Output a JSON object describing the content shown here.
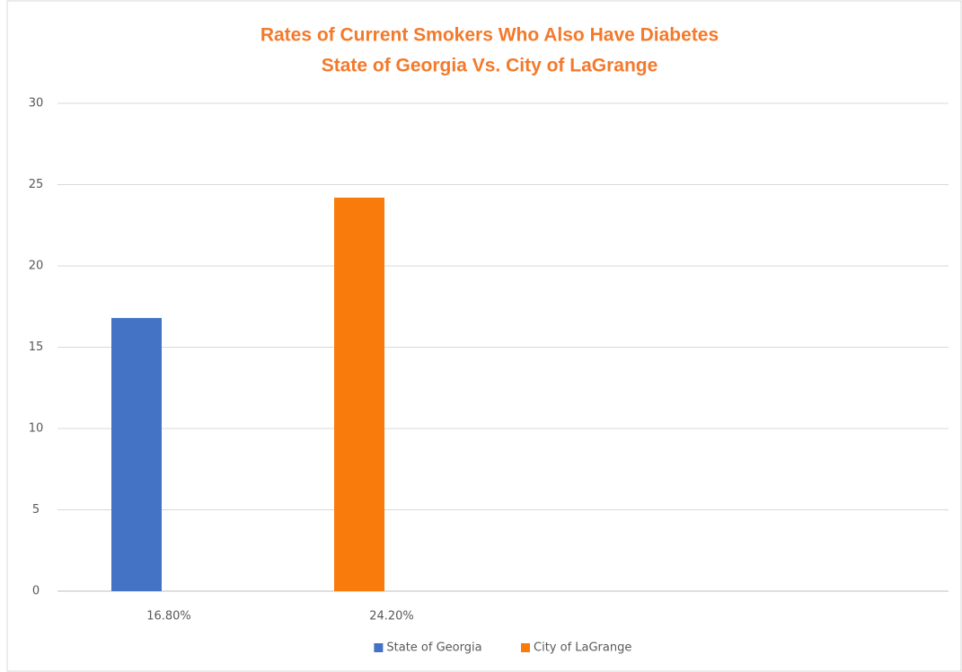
{
  "chart_data": {
    "type": "bar",
    "title": "Rates of Current Smokers Who Also Have Diabetes",
    "subtitle": "State of Georgia Vs. City of LaGrange",
    "categories": [
      "16.80%",
      "24.20%",
      null,
      null
    ],
    "series": [
      {
        "name": "State of Georgia",
        "color": "#4472c4",
        "values": [
          16.8,
          null,
          null,
          null
        ]
      },
      {
        "name": "City of LaGrange",
        "color": "#f97b0b",
        "values": [
          null,
          24.2,
          null,
          null
        ]
      }
    ],
    "ylim": [
      0,
      30
    ],
    "yticks": [
      0,
      5,
      10,
      15,
      20,
      25,
      30
    ],
    "grid": true,
    "legend": "bottom"
  }
}
